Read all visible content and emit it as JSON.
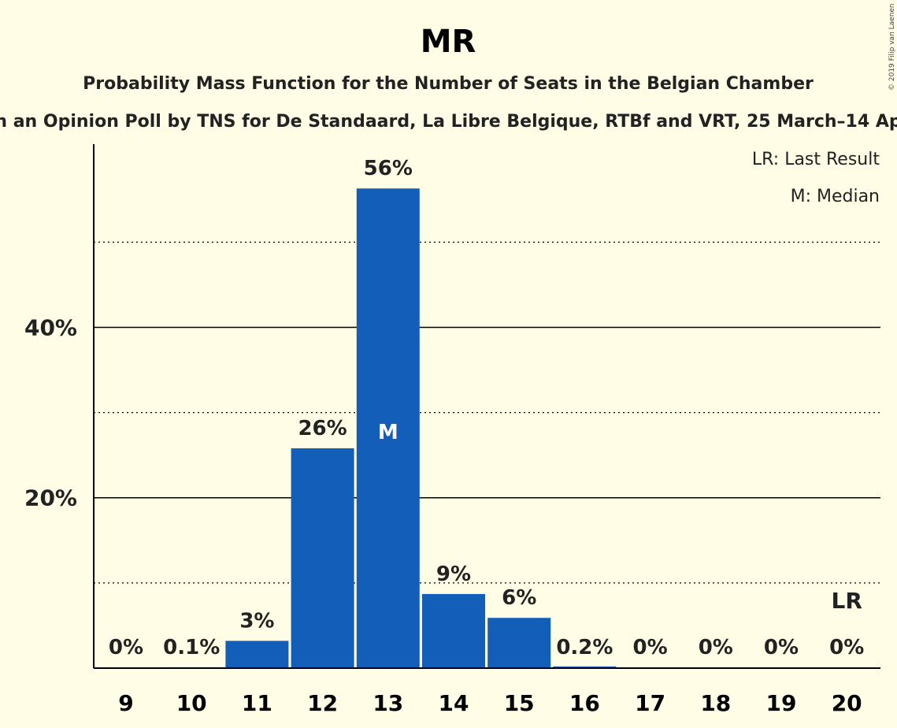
{
  "chart_data": {
    "type": "bar",
    "title": "MR",
    "subtitle": "Probability Mass Function for the Number of Seats in the Belgian Chamber",
    "subtitle2": "n an Opinion Poll by TNS for De Standaard, La Libre Belgique, RTBf and VRT, 25 March–14 Ap",
    "categories": [
      "9",
      "10",
      "11",
      "12",
      "13",
      "14",
      "15",
      "16",
      "17",
      "18",
      "19",
      "20"
    ],
    "values": [
      0,
      0.1,
      3.2,
      25.8,
      56.3,
      8.7,
      5.9,
      0.2,
      0,
      0,
      0,
      0
    ],
    "data_labels": [
      "0%",
      "0.1%",
      "3%",
      "26%",
      "56%",
      "9%",
      "6%",
      "0.2%",
      "0%",
      "0%",
      "0%",
      "0%"
    ],
    "yticks": [
      {
        "value": 20,
        "label": "20%"
      },
      {
        "value": 40,
        "label": "40%"
      }
    ],
    "minor_grid": [
      10,
      30,
      50
    ],
    "ylim": [
      0,
      61.5
    ],
    "median_index": 4,
    "median_mark": "M",
    "last_result_index": 11,
    "last_result_mark": "LR",
    "legend": [
      "LR: Last Result",
      "M: Median"
    ],
    "legend_position": "top-right",
    "bar_color": "#135EB9",
    "copyright": "© 2019 Filip van Laenen"
  }
}
